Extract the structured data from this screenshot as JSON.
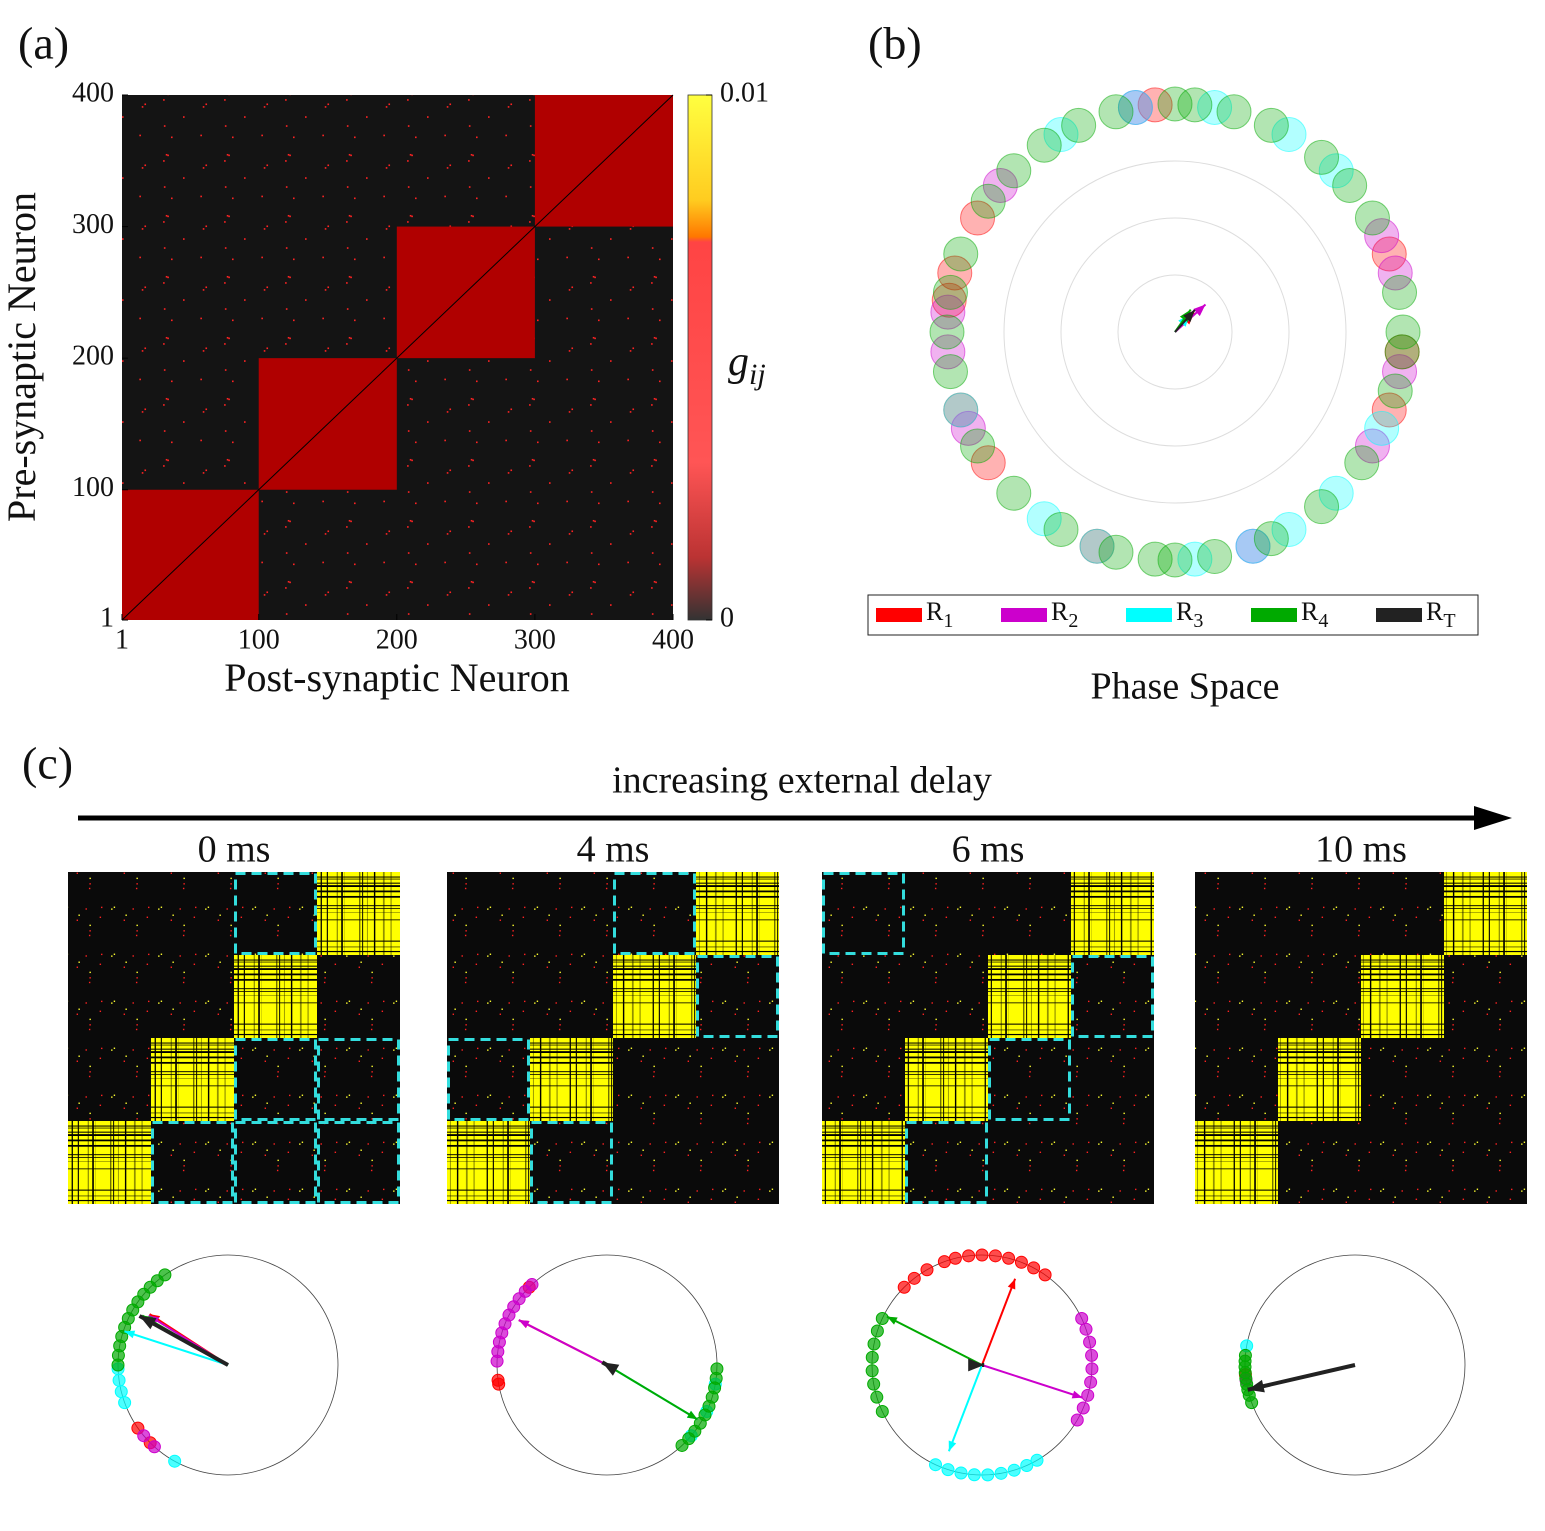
{
  "panel_labels": [
    "(a)",
    "(b)",
    "(c)"
  ],
  "chart_data": [
    {
      "type": "heatmap",
      "xlabel": "Post-synaptic Neuron",
      "ylabel": "Pre-synaptic Neuron",
      "xlim": [
        1,
        400
      ],
      "ylim": [
        1,
        400
      ],
      "xticks": [
        1,
        100,
        200,
        300,
        400
      ],
      "yticks": [
        1,
        100,
        200,
        300,
        400
      ],
      "blocks": [
        [
          1,
          100
        ],
        [
          100,
          200
        ],
        [
          200,
          300
        ],
        [
          300,
          400
        ]
      ],
      "block_value": 0.005,
      "block_color": "#b00000",
      "colorbar": {
        "label": "g",
        "label_sub": "ij",
        "lim": [
          0,
          0.01
        ],
        "ticks": [
          0,
          0.01
        ]
      }
    },
    {
      "type": "polar",
      "title": "Phase Space",
      "rlim": [
        0,
        1
      ],
      "rticks": [
        0.25,
        0.5,
        0.75
      ],
      "series": [
        {
          "name": "R",
          "sub": "1",
          "color": "#ff0000",
          "phases": [
            150,
            165,
            172,
            200,
            215,
            340,
            355,
            20,
            95,
            250
          ],
          "vector": [
            45,
            0.12
          ]
        },
        {
          "name": "R",
          "sub": "2",
          "color": "#cc00cc",
          "phases": [
            140,
            175,
            185,
            205,
            330,
            15,
            25,
            290,
            350,
            100
          ],
          "vector": [
            42,
            0.18
          ]
        },
        {
          "name": "R",
          "sub": "3",
          "color": "#00ffff",
          "phases": [
            60,
            80,
            120,
            200,
            250,
            275,
            290,
            300,
            315,
            335,
            45,
            100,
            235
          ],
          "vector": [
            50,
            0.1
          ]
        },
        {
          "name": "R",
          "sub": "4",
          "color": "#00aa00",
          "phases": [
            0,
            10,
            30,
            40,
            50,
            65,
            75,
            85,
            90,
            105,
            115,
            125,
            135,
            145,
            160,
            170,
            180,
            190,
            210,
            225,
            240,
            255,
            265,
            270,
            280,
            295,
            310,
            325,
            345,
            355
          ],
          "vector": [
            55,
            0.12
          ]
        },
        {
          "name": "R",
          "sub": "T",
          "color": "#222222",
          "phases": [],
          "vector": [
            48,
            0.13
          ]
        }
      ]
    },
    {
      "type": "delay-panels",
      "title": "increasing external delay",
      "panels": [
        {
          "title": "0 ms",
          "yellow_blocks": [
            [
              0,
              0
            ],
            [
              1,
              1
            ],
            [
              2,
              2
            ],
            [
              3,
              3
            ]
          ],
          "dashed_blocks": [
            [
              3,
              2
            ],
            [
              1,
              2
            ],
            [
              1,
              3
            ],
            [
              0,
              1
            ],
            [
              0,
              2
            ],
            [
              0,
              3
            ]
          ],
          "series": [
            {
              "color": "#ff0000",
              "phases": [
                215,
                225
              ],
              "vector": [
                147,
                0.85
              ]
            },
            {
              "color": "#cc00cc",
              "phases": [
                220,
                228
              ],
              "vector": [
                148,
                0.85
              ]
            },
            {
              "color": "#00ffff",
              "phases": [
                182,
                188,
                194,
                200,
                241
              ],
              "vector": [
                162,
                0.99
              ]
            },
            {
              "color": "#00aa00",
              "phases": [
                125,
                130,
                135,
                140,
                145,
                150,
                155,
                160,
                165,
                170,
                175,
                180
              ],
              "vector": [
                150,
                0.9
              ]
            },
            {
              "color": "#222222",
              "phases": [],
              "vector": [
                151,
                0.92
              ]
            }
          ]
        },
        {
          "title": "4 ms",
          "yellow_blocks": [
            [
              0,
              0
            ],
            [
              1,
              1
            ],
            [
              2,
              2
            ],
            [
              3,
              3
            ]
          ],
          "dashed_blocks": [
            [
              3,
              2
            ],
            [
              2,
              3
            ],
            [
              1,
              0
            ],
            [
              0,
              1
            ]
          ],
          "series": [
            {
              "color": "#ff0000",
              "phases": [
                135,
                188,
                190
              ],
              "vector": [
                153,
                0.9
              ]
            },
            {
              "color": "#cc00cc",
              "phases": [
                133,
                138,
                143,
                148,
                153,
                158,
                163,
                168,
                173,
                178
              ],
              "vector": [
                153,
                0.9
              ]
            },
            {
              "color": "#00ffff",
              "phases": [
                320,
                335,
                350
              ],
              "vector": [
                329,
                0.96
              ]
            },
            {
              "color": "#00aa00",
              "phases": [
                313,
                318,
                323,
                328,
                333,
                338,
                343,
                348,
                353,
                358
              ],
              "vector": [
                329,
                0.96
              ]
            },
            {
              "color": "#222222",
              "phases": [],
              "vector": [
                150,
                0.05
              ]
            }
          ]
        },
        {
          "title": "6 ms",
          "yellow_blocks": [
            [
              0,
              0
            ],
            [
              1,
              1
            ],
            [
              2,
              2
            ],
            [
              3,
              3
            ]
          ],
          "dashed_blocks": [
            [
              3,
              0
            ],
            [
              2,
              3
            ],
            [
              1,
              2
            ],
            [
              0,
              1
            ]
          ],
          "series": [
            {
              "color": "#ff0000",
              "phases": [
                55,
                62,
                69,
                76,
                83,
                90,
                97,
                104,
                110,
                120,
                128,
                135
              ],
              "vector": [
                69,
                0.84
              ]
            },
            {
              "color": "#cc00cc",
              "phases": [
                330,
                337,
                344,
                351,
                358,
                5,
                12,
                19,
                25
              ],
              "vector": [
                342,
                0.96
              ]
            },
            {
              "color": "#00ffff",
              "phases": [
                245,
                252,
                259,
                266,
                273,
                280,
                287,
                294,
                300
              ],
              "vector": [
                249,
                0.84
              ]
            },
            {
              "color": "#00aa00",
              "phases": [
                155,
                162,
                169,
                176,
                183,
                190,
                197,
                205
              ],
              "vector": [
                153,
                0.97
              ]
            },
            {
              "color": "#222222",
              "phases": [],
              "vector": [
                0,
                0.02
              ]
            }
          ]
        },
        {
          "title": "10 ms",
          "yellow_blocks": [
            [
              0,
              0
            ],
            [
              1,
              1
            ],
            [
              2,
              2
            ],
            [
              3,
              3
            ]
          ],
          "dashed_blocks": [],
          "series": [
            {
              "color": "#ff0000",
              "phases": [
                185
              ]
            },
            {
              "color": "#cc00cc",
              "phases": [
                188
              ]
            },
            {
              "color": "#00ffff",
              "phases": [
                170
              ]
            },
            {
              "color": "#00aa00",
              "phases": [
                175,
                178,
                181,
                184,
                187,
                190,
                193,
                196,
                200
              ]
            },
            {
              "color": "#222222",
              "phases": [],
              "vector": [
                193,
                1.0
              ]
            }
          ]
        }
      ]
    }
  ]
}
